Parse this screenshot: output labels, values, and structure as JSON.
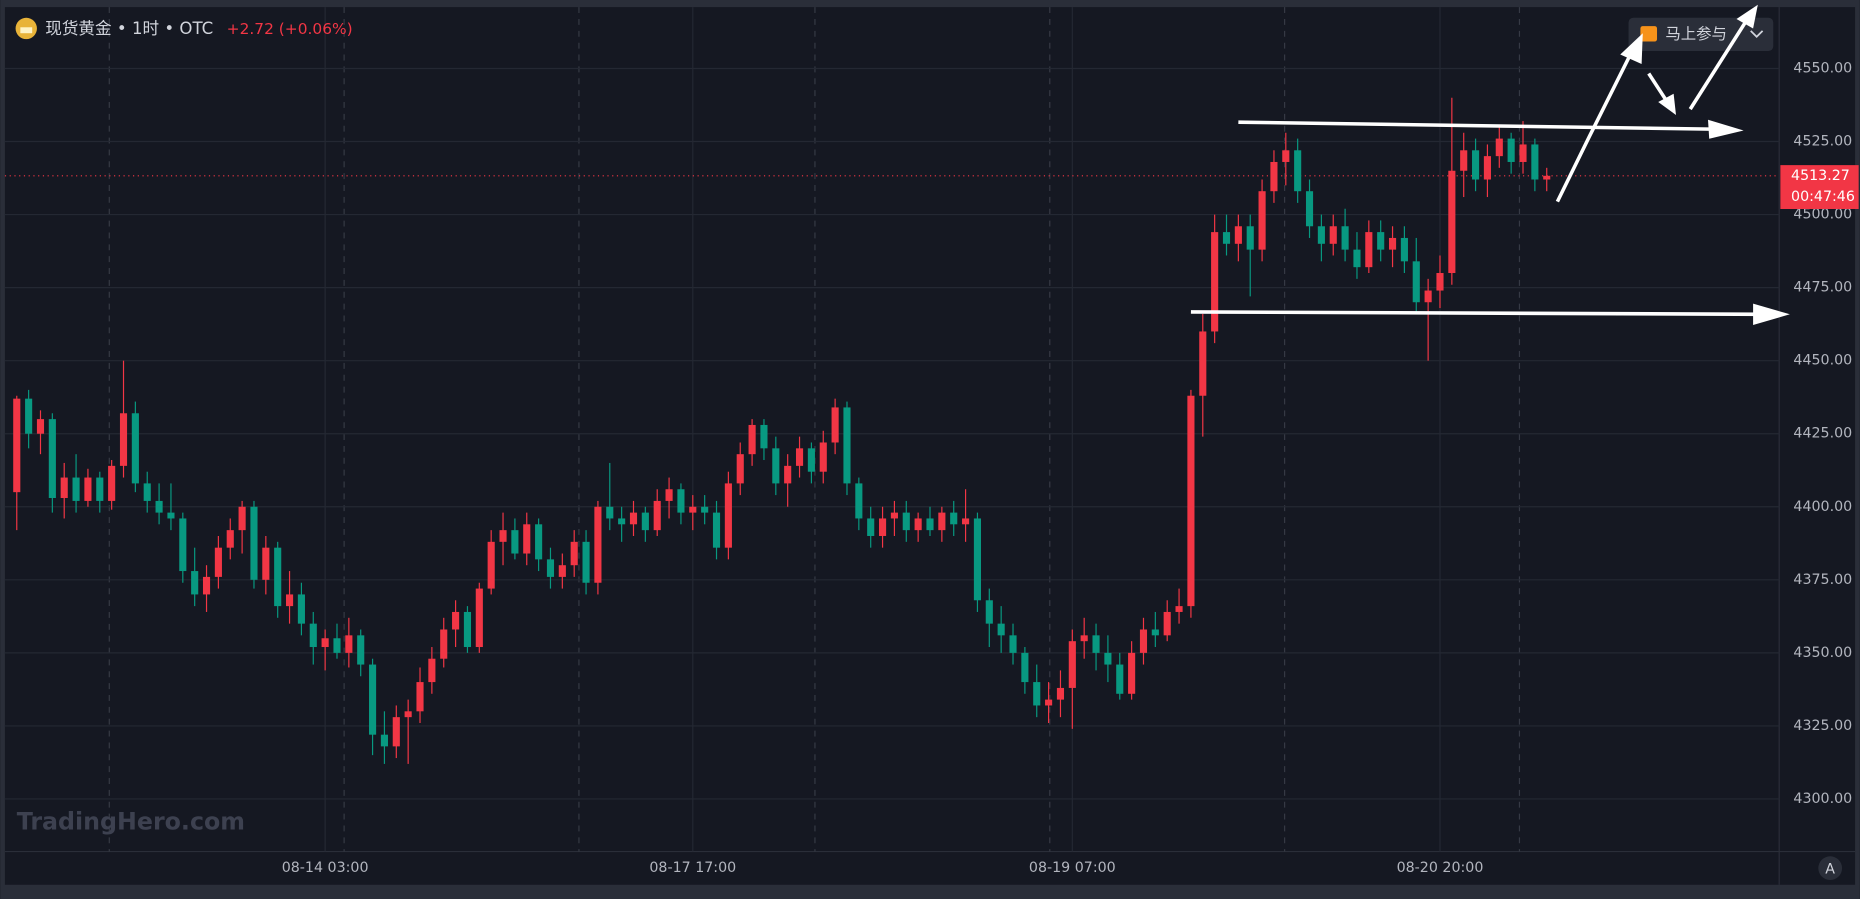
{
  "chart_data": {
    "type": "candlestick",
    "symbol": "现货黄金 • 1时 • OTC",
    "change": "+2.72 (+0.06%)",
    "button": "马上参与",
    "countdown": "00:47:46",
    "watermark": "TradingHero.com",
    "auto_button": "A",
    "up_color": "#f23645",
    "down_color": "#089981",
    "ylim": [
      4282,
      4571
    ],
    "yticks": [
      {
        "value": 4300,
        "label": "4300.00"
      },
      {
        "value": 4325,
        "label": "4325.00"
      },
      {
        "value": 4350,
        "label": "4350.00"
      },
      {
        "value": 4375,
        "label": "4375.00"
      },
      {
        "value": 4400,
        "label": "4400.00"
      },
      {
        "value": 4425,
        "label": "4425.00"
      },
      {
        "value": 4450,
        "label": "4450.00"
      },
      {
        "value": 4475,
        "label": "4475.00"
      },
      {
        "value": 4500,
        "label": "4500.00"
      },
      {
        "value": 4525,
        "label": "4525.00"
      },
      {
        "value": 4550,
        "label": "4550.00"
      }
    ],
    "categories": [
      null,
      null,
      null,
      null,
      null,
      null,
      null,
      null,
      null,
      null,
      null,
      null,
      null,
      null,
      null,
      null,
      null,
      null,
      null,
      null,
      null,
      null,
      null,
      null,
      null,
      null,
      "08-14 03:00",
      null,
      null,
      null,
      null,
      null,
      null,
      null,
      null,
      null,
      null,
      null,
      null,
      null,
      null,
      null,
      null,
      null,
      null,
      null,
      null,
      null,
      null,
      null,
      null,
      null,
      null,
      null,
      null,
      null,
      null,
      "08-17 17:00",
      null,
      null,
      null,
      null,
      null,
      null,
      null,
      null,
      null,
      null,
      null,
      null,
      null,
      null,
      null,
      null,
      null,
      null,
      null,
      null,
      null,
      null,
      null,
      null,
      null,
      null,
      null,
      null,
      null,
      null,
      null,
      "08-19 07:00",
      null,
      null,
      null,
      null,
      null,
      null,
      null,
      null,
      null,
      null,
      null,
      null,
      null,
      null,
      null,
      null,
      null,
      null,
      null,
      null,
      null,
      null,
      null,
      null,
      null,
      null,
      null,
      null,
      null,
      null,
      "08-20 20:00",
      null,
      null,
      null,
      null,
      null,
      null,
      null,
      null,
      null,
      null
    ],
    "candles": [
      [
        4405,
        4438,
        4392,
        4437
      ],
      [
        4437,
        4440,
        4420,
        4425
      ],
      [
        4425,
        4433,
        4418,
        4430
      ],
      [
        4430,
        4432,
        4398,
        4403
      ],
      [
        4403,
        4415,
        4396,
        4410
      ],
      [
        4410,
        4418,
        4398,
        4402
      ],
      [
        4402,
        4413,
        4400,
        4410
      ],
      [
        4410,
        4412,
        4398,
        4402
      ],
      [
        4402,
        4416,
        4399,
        4414
      ],
      [
        4414,
        4450,
        4410,
        4432
      ],
      [
        4432,
        4436,
        4405,
        4408
      ],
      [
        4408,
        4412,
        4398,
        4402
      ],
      [
        4402,
        4408,
        4394,
        4398
      ],
      [
        4398,
        4408,
        4392,
        4396
      ],
      [
        4396,
        4398,
        4374,
        4378
      ],
      [
        4378,
        4386,
        4366,
        4370
      ],
      [
        4370,
        4380,
        4364,
        4376
      ],
      [
        4376,
        4390,
        4372,
        4386
      ],
      [
        4386,
        4396,
        4382,
        4392
      ],
      [
        4392,
        4402,
        4384,
        4400
      ],
      [
        4400,
        4402,
        4372,
        4375
      ],
      [
        4375,
        4390,
        4370,
        4386
      ],
      [
        4386,
        4388,
        4362,
        4366
      ],
      [
        4366,
        4378,
        4360,
        4370
      ],
      [
        4370,
        4374,
        4356,
        4360
      ],
      [
        4360,
        4364,
        4346,
        4352
      ],
      [
        4352,
        4358,
        4344,
        4355
      ],
      [
        4355,
        4360,
        4348,
        4350
      ],
      [
        4350,
        4362,
        4345,
        4356
      ],
      [
        4356,
        4358,
        4342,
        4346
      ],
      [
        4346,
        4348,
        4315,
        4322
      ],
      [
        4322,
        4330,
        4312,
        4318
      ],
      [
        4318,
        4332,
        4314,
        4328
      ],
      [
        4328,
        4334,
        4312,
        4330
      ],
      [
        4330,
        4345,
        4326,
        4340
      ],
      [
        4340,
        4352,
        4336,
        4348
      ],
      [
        4348,
        4362,
        4345,
        4358
      ],
      [
        4358,
        4368,
        4352,
        4364
      ],
      [
        4364,
        4366,
        4350,
        4352
      ],
      [
        4352,
        4374,
        4350,
        4372
      ],
      [
        4372,
        4392,
        4370,
        4388
      ],
      [
        4388,
        4398,
        4380,
        4392
      ],
      [
        4392,
        4396,
        4382,
        4384
      ],
      [
        4384,
        4398,
        4380,
        4394
      ],
      [
        4394,
        4396,
        4378,
        4382
      ],
      [
        4382,
        4386,
        4372,
        4376
      ],
      [
        4376,
        4384,
        4372,
        4380
      ],
      [
        4380,
        4392,
        4376,
        4388
      ],
      [
        4388,
        4392,
        4370,
        4374
      ],
      [
        4374,
        4402,
        4370,
        4400
      ],
      [
        4400,
        4415,
        4392,
        4396
      ],
      [
        4396,
        4400,
        4388,
        4394
      ],
      [
        4394,
        4402,
        4390,
        4398
      ],
      [
        4398,
        4400,
        4388,
        4392
      ],
      [
        4392,
        4406,
        4390,
        4402
      ],
      [
        4402,
        4410,
        4396,
        4406
      ],
      [
        4406,
        4408,
        4394,
        4398
      ],
      [
        4398,
        4404,
        4392,
        4400
      ],
      [
        4400,
        4404,
        4394,
        4398
      ],
      [
        4398,
        4402,
        4382,
        4386
      ],
      [
        4386,
        4412,
        4382,
        4408
      ],
      [
        4408,
        4422,
        4404,
        4418
      ],
      [
        4418,
        4430,
        4414,
        4428
      ],
      [
        4428,
        4430,
        4416,
        4420
      ],
      [
        4420,
        4424,
        4404,
        4408
      ],
      [
        4408,
        4418,
        4400,
        4414
      ],
      [
        4414,
        4424,
        4410,
        4420
      ],
      [
        4420,
        4422,
        4408,
        4412
      ],
      [
        4412,
        4426,
        4408,
        4422
      ],
      [
        4422,
        4437,
        4418,
        4434
      ],
      [
        4434,
        4436,
        4404,
        4408
      ],
      [
        4408,
        4410,
        4392,
        4396
      ],
      [
        4396,
        4400,
        4386,
        4390
      ],
      [
        4390,
        4400,
        4386,
        4396
      ],
      [
        4396,
        4402,
        4390,
        4398
      ],
      [
        4398,
        4402,
        4388,
        4392
      ],
      [
        4392,
        4398,
        4388,
        4396
      ],
      [
        4396,
        4400,
        4390,
        4392
      ],
      [
        4392,
        4400,
        4388,
        4398
      ],
      [
        4398,
        4402,
        4390,
        4394
      ],
      [
        4394,
        4406,
        4388,
        4396
      ],
      [
        4396,
        4398,
        4364,
        4368
      ],
      [
        4368,
        4372,
        4352,
        4360
      ],
      [
        4360,
        4366,
        4350,
        4356
      ],
      [
        4356,
        4360,
        4346,
        4350
      ],
      [
        4350,
        4352,
        4336,
        4340
      ],
      [
        4340,
        4346,
        4328,
        4332
      ],
      [
        4332,
        4340,
        4326,
        4334
      ],
      [
        4334,
        4344,
        4328,
        4338
      ],
      [
        4338,
        4358,
        4324,
        4354
      ],
      [
        4354,
        4362,
        4348,
        4356
      ],
      [
        4356,
        4360,
        4344,
        4350
      ],
      [
        4350,
        4356,
        4340,
        4346
      ],
      [
        4346,
        4350,
        4334,
        4336
      ],
      [
        4336,
        4354,
        4334,
        4350
      ],
      [
        4350,
        4362,
        4346,
        4358
      ],
      [
        4358,
        4364,
        4352,
        4356
      ],
      [
        4356,
        4368,
        4354,
        4364
      ],
      [
        4364,
        4372,
        4360,
        4366
      ],
      [
        4366,
        4440,
        4362,
        4438
      ],
      [
        4438,
        4466,
        4424,
        4460
      ],
      [
        4460,
        4500,
        4456,
        4494
      ],
      [
        4494,
        4500,
        4486,
        4490
      ],
      [
        4490,
        4500,
        4484,
        4496
      ],
      [
        4496,
        4500,
        4472,
        4488
      ],
      [
        4488,
        4512,
        4484,
        4508
      ],
      [
        4508,
        4522,
        4504,
        4518
      ],
      [
        4518,
        4528,
        4510,
        4522
      ],
      [
        4522,
        4526,
        4504,
        4508
      ],
      [
        4508,
        4512,
        4492,
        4496
      ],
      [
        4496,
        4500,
        4484,
        4490
      ],
      [
        4490,
        4500,
        4486,
        4496
      ],
      [
        4496,
        4502,
        4484,
        4488
      ],
      [
        4488,
        4494,
        4478,
        4482
      ],
      [
        4482,
        4498,
        4480,
        4494
      ],
      [
        4494,
        4498,
        4484,
        4488
      ],
      [
        4488,
        4496,
        4482,
        4492
      ],
      [
        4492,
        4496,
        4480,
        4484
      ],
      [
        4484,
        4492,
        4466,
        4470
      ],
      [
        4470,
        4478,
        4450,
        4474
      ],
      [
        4474,
        4486,
        4468,
        4480
      ],
      [
        4480,
        4540,
        4476,
        4515
      ],
      [
        4515,
        4528,
        4506,
        4522
      ],
      [
        4522,
        4526,
        4508,
        4512
      ],
      [
        4512,
        4524,
        4506,
        4520
      ],
      [
        4520,
        4530,
        4516,
        4526
      ],
      [
        4526,
        4528,
        4514,
        4518
      ],
      [
        4518,
        4532,
        4514,
        4524
      ],
      [
        4524,
        4526,
        4508,
        4512
      ],
      [
        4512,
        4516,
        4508,
        4513.27
      ]
    ]
  }
}
